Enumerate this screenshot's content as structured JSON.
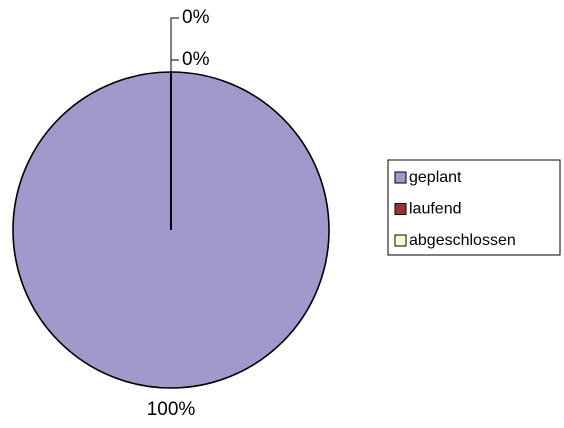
{
  "chart_data": {
    "type": "pie",
    "categories": [
      "geplant",
      "laufend",
      "abgeschlossen"
    ],
    "values": [
      100,
      0,
      0
    ],
    "value_labels": [
      "100%",
      "0%",
      "0%"
    ],
    "colors": [
      "#9f99cc",
      "#993333",
      "#ffffcc"
    ],
    "legend": "right"
  }
}
